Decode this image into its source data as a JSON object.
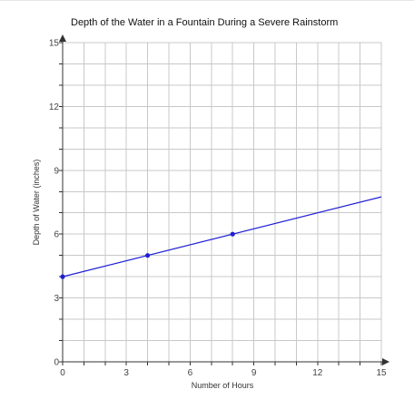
{
  "chart_data": {
    "type": "line",
    "title": "Depth of the Water in a Fountain During a Severe Rainstorm",
    "xlabel": "Number of Hours",
    "ylabel": "Depth of Water (inches)",
    "xlim": [
      0,
      15
    ],
    "ylim": [
      0,
      15
    ],
    "grid": true,
    "x_ticks": [
      0,
      3,
      6,
      9,
      12,
      15
    ],
    "y_ticks": [
      0,
      3,
      6,
      9,
      12,
      15
    ],
    "series": [
      {
        "line_start": [
          0,
          4
        ],
        "line_end": [
          15,
          7.75
        ],
        "points": [
          [
            0,
            4
          ],
          [
            4,
            5
          ],
          [
            8,
            6
          ]
        ],
        "color": "#1f1fd6"
      }
    ]
  }
}
